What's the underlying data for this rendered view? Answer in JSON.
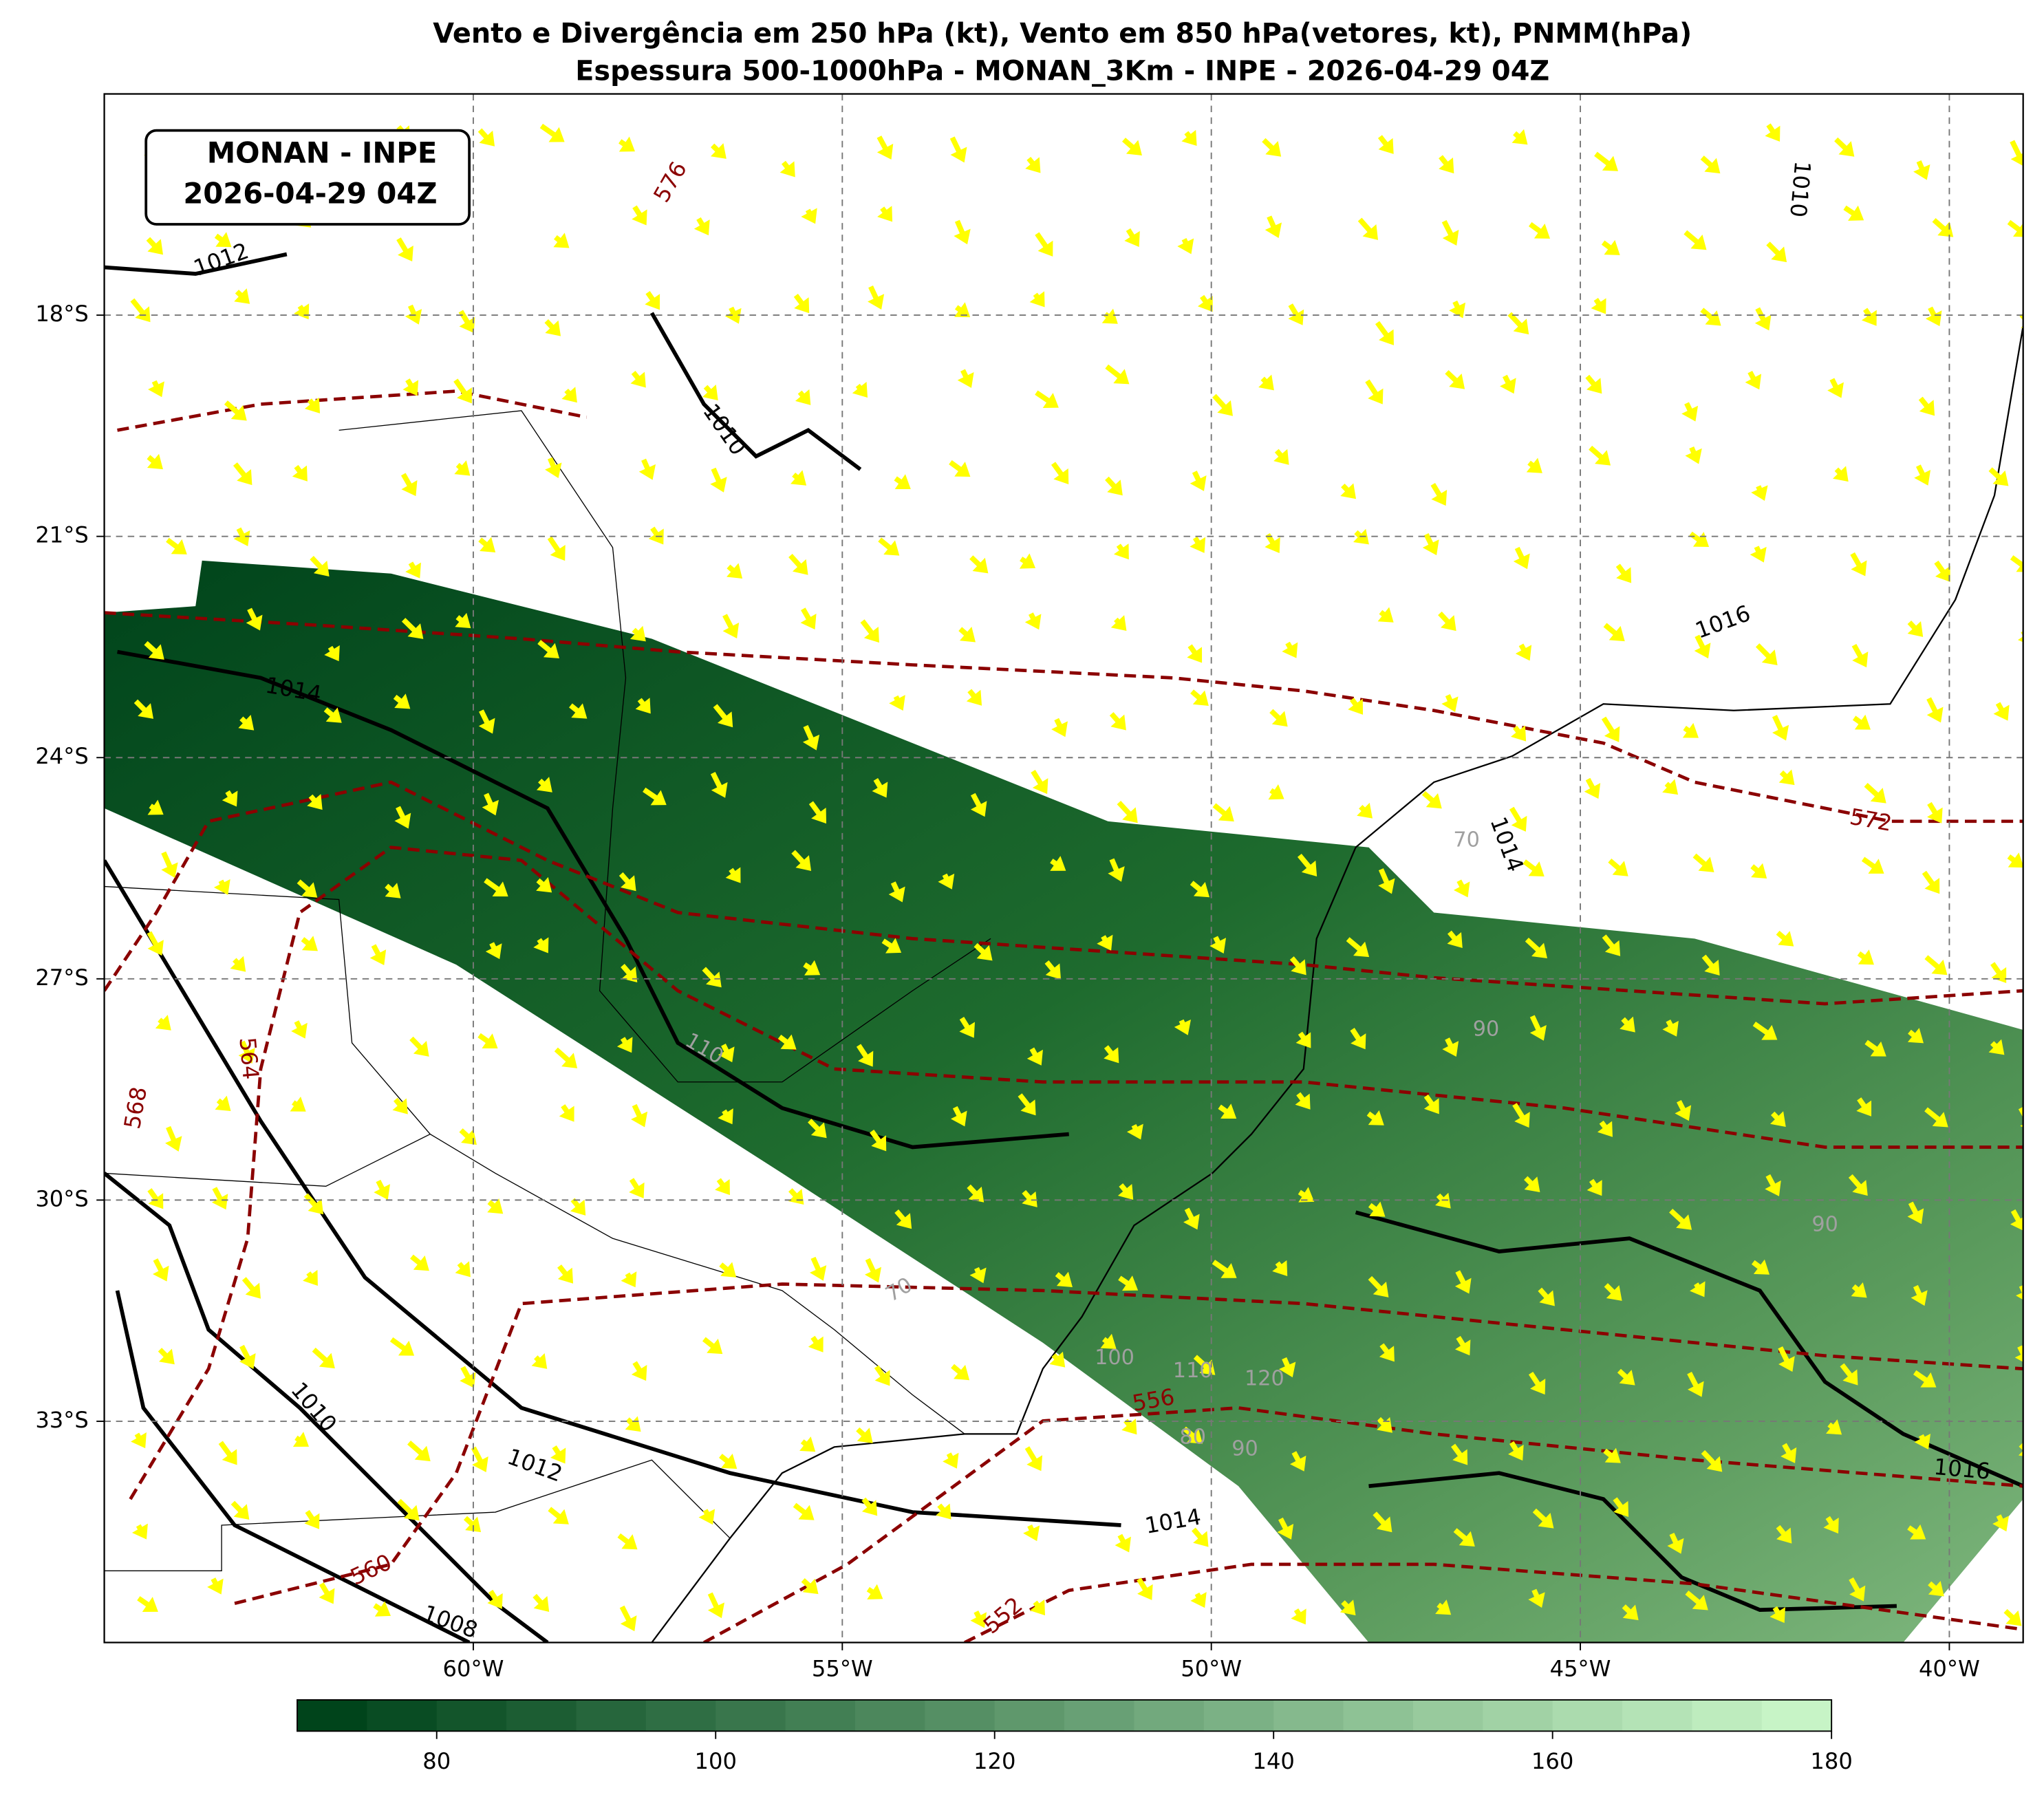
{
  "title": [
    "Vento e Divergência em 250 hPa (kt), Vento em 850 hPa(vetores, kt), PNMM(hPa)",
    "Espessura 500-1000hPa - MONAN_3Km - INPE - 2026-04-29 04Z"
  ],
  "label_box": [
    "MONAN - INPE",
    "2026-04-29 04Z"
  ],
  "map": {
    "xlim": [
      -65,
      -39
    ],
    "ylim": [
      -36,
      -15
    ],
    "grid": true,
    "xticks": [
      {
        "value": -60,
        "label": "60°W"
      },
      {
        "value": -55,
        "label": "55°W"
      },
      {
        "value": -50,
        "label": "50°W"
      },
      {
        "value": -45,
        "label": "45°W"
      },
      {
        "value": -40,
        "label": "40°W"
      }
    ],
    "yticks": [
      {
        "value": -18,
        "label": "18°S"
      },
      {
        "value": -21,
        "label": "21°S"
      },
      {
        "value": -24,
        "label": "24°S"
      },
      {
        "value": -27,
        "label": "27°S"
      },
      {
        "value": -30,
        "label": "30°S"
      },
      {
        "value": -33,
        "label": "33°S"
      }
    ]
  },
  "contour_labels": {
    "pressure": [
      1012,
      1010,
      1014,
      1016,
      1014,
      1012,
      1010,
      1008,
      1014,
      1016,
      1010
    ],
    "thickness": [
      576,
      572,
      568,
      564,
      560,
      556,
      552
    ],
    "wind": [
      110,
      100,
      110,
      120,
      80,
      90,
      70,
      90,
      90,
      70
    ]
  },
  "colorbar": {
    "lim": [
      70,
      180
    ],
    "ticks": [
      80,
      100,
      120,
      140,
      160,
      180
    ],
    "levels_step": 5,
    "colors": [
      "#00441b",
      "#c7f4c6"
    ]
  }
}
